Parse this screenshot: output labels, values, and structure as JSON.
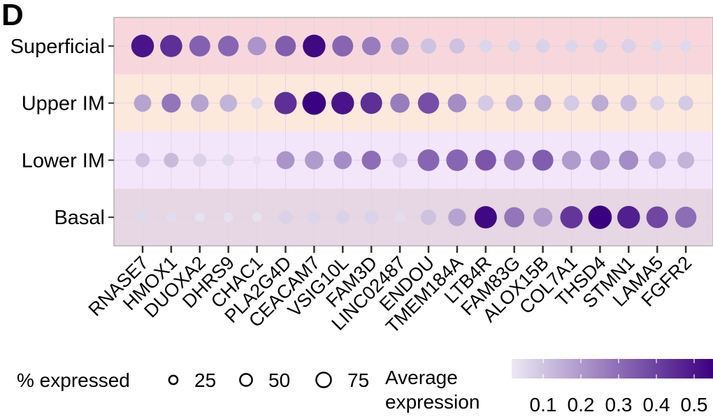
{
  "panel_label": "D",
  "chart_data": {
    "type": "dot",
    "rows": [
      "Superficial",
      "Upper IM",
      "Lower IM",
      "Basal"
    ],
    "row_band_colors": [
      "#f8d7dc",
      "#fde8dc",
      "#f3e6fb",
      "#e7d6e3"
    ],
    "columns": [
      "RNASE7",
      "HMOX1",
      "DUOXA2",
      "DHRS9",
      "CHAC1",
      "PLA2G4D",
      "CEACAM7",
      "VSIG10L",
      "FAM3D",
      "LINC02487",
      "ENDOU",
      "TMEM184A",
      "LTB4R",
      "FAM83G",
      "ALOX15B",
      "COL7A1",
      "THSD4",
      "STMN1",
      "LAMA5",
      "FGFR2"
    ],
    "pct_expressed": [
      [
        82,
        78,
        70,
        68,
        55,
        68,
        82,
        70,
        55,
        50,
        38,
        38,
        28,
        25,
        30,
        25,
        30,
        32,
        20,
        22
      ],
      [
        48,
        58,
        50,
        48,
        22,
        80,
        88,
        82,
        75,
        60,
        72,
        55,
        40,
        45,
        45,
        38,
        45,
        42,
        33,
        35
      ],
      [
        32,
        35,
        28,
        22,
        12,
        52,
        55,
        52,
        58,
        35,
        75,
        75,
        70,
        68,
        70,
        58,
        62,
        60,
        48,
        45
      ],
      [
        20,
        18,
        15,
        15,
        15,
        30,
        28,
        28,
        30,
        18,
        38,
        50,
        80,
        65,
        58,
        80,
        88,
        82,
        75,
        72
      ]
    ],
    "avg_expression": [
      [
        0.55,
        0.48,
        0.35,
        0.34,
        0.22,
        0.36,
        0.58,
        0.34,
        0.28,
        0.2,
        0.1,
        0.1,
        0.05,
        0.05,
        0.06,
        0.05,
        0.06,
        0.06,
        0.04,
        0.04
      ],
      [
        0.18,
        0.3,
        0.18,
        0.14,
        0.04,
        0.48,
        0.62,
        0.55,
        0.48,
        0.28,
        0.4,
        0.24,
        0.08,
        0.14,
        0.16,
        0.08,
        0.16,
        0.12,
        0.06,
        0.08
      ],
      [
        0.1,
        0.12,
        0.06,
        0.04,
        0.02,
        0.22,
        0.2,
        0.24,
        0.32,
        0.08,
        0.34,
        0.34,
        0.38,
        0.28,
        0.36,
        0.2,
        0.22,
        0.24,
        0.16,
        0.14
      ],
      [
        0.04,
        0.03,
        0.02,
        0.02,
        0.02,
        0.06,
        0.05,
        0.06,
        0.06,
        0.03,
        0.1,
        0.18,
        0.58,
        0.3,
        0.2,
        0.46,
        0.62,
        0.52,
        0.42,
        0.32
      ]
    ],
    "grid": true,
    "legend_placement": "bottom",
    "size_legend": {
      "title": "% expressed",
      "values": [
        25,
        50,
        75
      ],
      "labels": [
        "25",
        "50",
        "75"
      ]
    },
    "color_legend": {
      "title_line1": "Average",
      "title_line2": "expression",
      "ticks": [
        "0.1",
        "0.2",
        "0.3",
        "0.4",
        "0.5"
      ],
      "tick_values": [
        0.1,
        0.2,
        0.3,
        0.4,
        0.5
      ],
      "range": [
        0,
        0.6
      ],
      "color_low": "#ebe9f4",
      "color_high": "#3b0080"
    }
  }
}
